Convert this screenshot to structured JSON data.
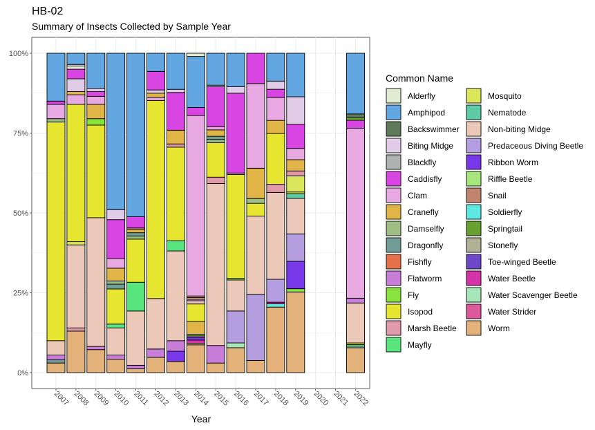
{
  "chart_data": {
    "type": "bar",
    "stacked": "percent",
    "title": "HB-02",
    "subtitle": "Summary of Insects Collected by Sample Year",
    "xlabel": "Year",
    "ylabel": "",
    "ylim": [
      0,
      1
    ],
    "y_ticks": [
      "0%",
      "25%",
      "50%",
      "75%",
      "100%"
    ],
    "categories": [
      "2007",
      "2008",
      "2009",
      "2010",
      "2011",
      "2012",
      "2013",
      "2014",
      "2015",
      "2016",
      "2017",
      "2018",
      "2019",
      "2020",
      "2021",
      "2022"
    ],
    "legend": {
      "title": "Common Name",
      "position": "right",
      "entries": [
        {
          "name": "Alderfly",
          "color": "#e0ecd2"
        },
        {
          "name": "Amphipod",
          "color": "#62a6e2"
        },
        {
          "name": "Backswimmer",
          "color": "#5f7a58"
        },
        {
          "name": "Biting Midge",
          "color": "#e0cce6"
        },
        {
          "name": "Blackfly",
          "color": "#b0b2b1"
        },
        {
          "name": "Caddisfly",
          "color": "#d945e2"
        },
        {
          "name": "Clam",
          "color": "#e8a8e2"
        },
        {
          "name": "Cranefly",
          "color": "#e0b446"
        },
        {
          "name": "Damselfly",
          "color": "#9cbe84"
        },
        {
          "name": "Dragonfly",
          "color": "#6f9c96"
        },
        {
          "name": "Fishfly",
          "color": "#e6704a"
        },
        {
          "name": "Flatworm",
          "color": "#c87ed8"
        },
        {
          "name": "Fly",
          "color": "#88e33e"
        },
        {
          "name": "Isopod",
          "color": "#e6e630"
        },
        {
          "name": "Marsh Beetle",
          "color": "#e09aa8"
        },
        {
          "name": "Mayfly",
          "color": "#58e57e"
        },
        {
          "name": "Mosquito",
          "color": "#dce65a"
        },
        {
          "name": "Nematode",
          "color": "#5ecaa6"
        },
        {
          "name": "Non-biting Midge",
          "color": "#ecc8b8"
        },
        {
          "name": "Predaceous Diving Beetle",
          "color": "#b49ee0"
        },
        {
          "name": "Ribbon Worm",
          "color": "#7838ea"
        },
        {
          "name": "Riffle Beetle",
          "color": "#a6e67c"
        },
        {
          "name": "Snail",
          "color": "#c0836e"
        },
        {
          "name": "Soldierfly",
          "color": "#5ee8e2"
        },
        {
          "name": "Springtail",
          "color": "#68a030"
        },
        {
          "name": "Stonefly",
          "color": "#b0b096"
        },
        {
          "name": "Toe-winged Beetle",
          "color": "#6c48c8"
        },
        {
          "name": "Water Beetle",
          "color": "#d432a6"
        },
        {
          "name": "Water Scavenger Beetle",
          "color": "#a6e6b8"
        },
        {
          "name": "Water Strider",
          "color": "#dc5a9c"
        },
        {
          "name": "Worm",
          "color": "#e2b27a"
        }
      ]
    },
    "series_by_year": {
      "2007": [
        [
          "Worm",
          0.03
        ],
        [
          "Dragonfly",
          0.01
        ],
        [
          "Flatworm",
          0.015
        ],
        [
          "Non-biting Midge",
          0.045
        ],
        [
          "Isopod",
          0.685
        ],
        [
          "Damselfly",
          0.01
        ],
        [
          "Clam",
          0.045
        ],
        [
          "Caddisfly",
          0.01
        ],
        [
          "Amphipod",
          0.15
        ]
      ],
      "2008": [
        [
          "Worm",
          0.13
        ],
        [
          "Marsh Beetle",
          0.01
        ],
        [
          "Non-biting Midge",
          0.26
        ],
        [
          "Mosquito",
          0.01
        ],
        [
          "Isopod",
          0.43
        ],
        [
          "Clam",
          0.03
        ],
        [
          "Cranefly",
          0.01
        ],
        [
          "Biting Midge",
          0.04
        ],
        [
          "Caddisfly",
          0.03
        ],
        [
          "Alderfly",
          0.01
        ],
        [
          "Biting Midge",
          0.005
        ],
        [
          "Amphipod",
          0.035
        ]
      ],
      "2009": [
        [
          "Worm",
          0.072
        ],
        [
          "Flatworm",
          0.01
        ],
        [
          "Non-biting Midge",
          0.403
        ],
        [
          "Isopod",
          0.29
        ],
        [
          "Fly",
          0.02
        ],
        [
          "Cranefly",
          0.045
        ],
        [
          "Clam",
          0.025
        ],
        [
          "Caddisfly",
          0.015
        ],
        [
          "Biting Midge",
          0.01
        ],
        [
          "Amphipod",
          0.11
        ]
      ],
      "2010": [
        [
          "Worm",
          0.042
        ],
        [
          "Flatworm",
          0.013
        ],
        [
          "Non-biting Midge",
          0.085
        ],
        [
          "Mayfly",
          0.012
        ],
        [
          "Isopod",
          0.11
        ],
        [
          "Dragonfly",
          0.015
        ],
        [
          "Damselfly",
          0.01
        ],
        [
          "Cranefly",
          0.04
        ],
        [
          "Clam",
          0.03
        ],
        [
          "Caddisfly",
          0.122
        ],
        [
          "Biting Midge",
          0.031
        ],
        [
          "Amphipod",
          0.49
        ]
      ],
      "2011": [
        [
          "Worm",
          0.012
        ],
        [
          "Flatworm",
          0.011
        ],
        [
          "Non-biting Midge",
          0.17
        ],
        [
          "Mayfly",
          0.09
        ],
        [
          "Isopod",
          0.135
        ],
        [
          "Damselfly",
          0.01
        ],
        [
          "Dragonfly",
          0.01
        ],
        [
          "Cranefly",
          0.01
        ],
        [
          "Snail",
          0.005
        ],
        [
          "Caddisfly",
          0.035
        ],
        [
          "Amphipod",
          0.512
        ]
      ],
      "2012": [
        [
          "Worm",
          0.048
        ],
        [
          "Flatworm",
          0.026
        ],
        [
          "Non-biting Midge",
          0.158
        ],
        [
          "Isopod",
          0.62
        ],
        [
          "Clam",
          0.01
        ],
        [
          "Cranefly",
          0.013
        ],
        [
          "Biting Midge",
          0.01
        ],
        [
          "Caddisfly",
          0.058
        ],
        [
          "Amphipod",
          0.057
        ]
      ],
      "2013": [
        [
          "Worm",
          0.035
        ],
        [
          "Ribbon Worm",
          0.032
        ],
        [
          "Flatworm",
          0.033
        ],
        [
          "Non-biting Midge",
          0.281
        ],
        [
          "Mayfly",
          0.032
        ],
        [
          "Isopod",
          0.293
        ],
        [
          "Marsh Beetle",
          0.01
        ],
        [
          "Cranefly",
          0.043
        ],
        [
          "Caddisfly",
          0.118
        ],
        [
          "Biting Midge",
          0.01
        ],
        [
          "Amphipod",
          0.113
        ]
      ],
      "2014": [
        [
          "Worm",
          0.087
        ],
        [
          "Non-biting Midge",
          0.005
        ],
        [
          "Water Beetle",
          0.01
        ],
        [
          "Ribbon Worm",
          0.008
        ],
        [
          "Flatworm",
          0.005
        ],
        [
          "Fly",
          0.005
        ],
        [
          "Cranefly",
          0.04
        ],
        [
          "Isopod",
          0.055
        ],
        [
          "Non-biting Midge",
          0.01
        ],
        [
          "Flatworm",
          0.005
        ],
        [
          "Cranefly",
          0.005
        ],
        [
          "Marsh Beetle",
          0.005
        ],
        [
          "Clam",
          0.565
        ],
        [
          "Caddisfly",
          0.025
        ],
        [
          "Amphipod",
          0.16
        ],
        [
          "Alderfly",
          0.01
        ]
      ],
      "2015": [
        [
          "Worm",
          0.03
        ],
        [
          "Flatworm",
          0.055
        ],
        [
          "Non-biting Midge",
          0.507
        ],
        [
          "Marsh Beetle",
          0.02
        ],
        [
          "Isopod",
          0.108
        ],
        [
          "Damselfly",
          0.01
        ],
        [
          "Dragonfly",
          0.01
        ],
        [
          "Cranefly",
          0.02
        ],
        [
          "Clam",
          0.01
        ],
        [
          "Caddisfly",
          0.125
        ],
        [
          "Biting Midge",
          0.005
        ],
        [
          "Amphipod",
          0.1
        ]
      ],
      "2016": [
        [
          "Worm",
          0.078
        ],
        [
          "Water Scavenger Beetle",
          0.015
        ],
        [
          "Predaceous Diving Beetle",
          0.1
        ],
        [
          "Non-biting Midge",
          0.097
        ],
        [
          "Fly",
          0.005
        ],
        [
          "Isopod",
          0.325
        ],
        [
          "Clam",
          0.005
        ],
        [
          "Caddisfly",
          0.25
        ],
        [
          "Biting Midge",
          0.02
        ],
        [
          "Amphipod",
          0.105
        ]
      ],
      "2017": [
        [
          "Worm",
          0.038
        ],
        [
          "Predaceous Diving Beetle",
          0.207
        ],
        [
          "Non-biting Midge",
          0.245
        ],
        [
          "Isopod",
          0.04
        ],
        [
          "Damselfly",
          0.015
        ],
        [
          "Cranefly",
          0.095
        ],
        [
          "Clam",
          0.265
        ],
        [
          "Caddisfly",
          0.095
        ]
      ],
      "2018": [
        [
          "Worm",
          0.2
        ],
        [
          "Soldierfly",
          0.01
        ],
        [
          "Water Beetle",
          0.005
        ],
        [
          "Predaceous Diving Beetle",
          0.07
        ],
        [
          "Non-biting Midge",
          0.265
        ],
        [
          "Marsh Beetle",
          0.025
        ],
        [
          "Isopod",
          0.155
        ],
        [
          "Cranefly",
          0.04
        ],
        [
          "Clam",
          0.07
        ],
        [
          "Caddisfly",
          0.025
        ],
        [
          "Biting Midge",
          0.025
        ],
        [
          "Amphipod",
          0.085
        ]
      ],
      "2019": [
        [
          "Worm",
          0.25
        ],
        [
          "Fly",
          0.01
        ],
        [
          "Ribbon Worm",
          0.085
        ],
        [
          "Predaceous Diving Beetle",
          0.085
        ],
        [
          "Non-biting Midge",
          0.11
        ],
        [
          "Nematode",
          0.015
        ],
        [
          "Isopod",
          0.005
        ],
        [
          "Mosquito",
          0.05
        ],
        [
          "Marsh Beetle",
          0.015
        ],
        [
          "Cranefly",
          0.035
        ],
        [
          "Clam",
          0.035
        ],
        [
          "Caddisfly",
          0.075
        ],
        [
          "Biting Midge",
          0.085
        ],
        [
          "Amphipod",
          0.135
        ]
      ],
      "2020": [],
      "2021": [],
      "2022": [
        [
          "Worm",
          0.078
        ],
        [
          "Soldierfly",
          0.005
        ],
        [
          "Fly",
          0.005
        ],
        [
          "Mosquito",
          0.005
        ],
        [
          "Non-biting Midge",
          0.125
        ],
        [
          "Flatworm",
          0.015
        ],
        [
          "Clam",
          0.532
        ],
        [
          "Caddisfly",
          0.025
        ],
        [
          "Springtail",
          0.01
        ],
        [
          "Backswimmer",
          0.01
        ],
        [
          "Amphipod",
          0.19
        ]
      ]
    }
  }
}
